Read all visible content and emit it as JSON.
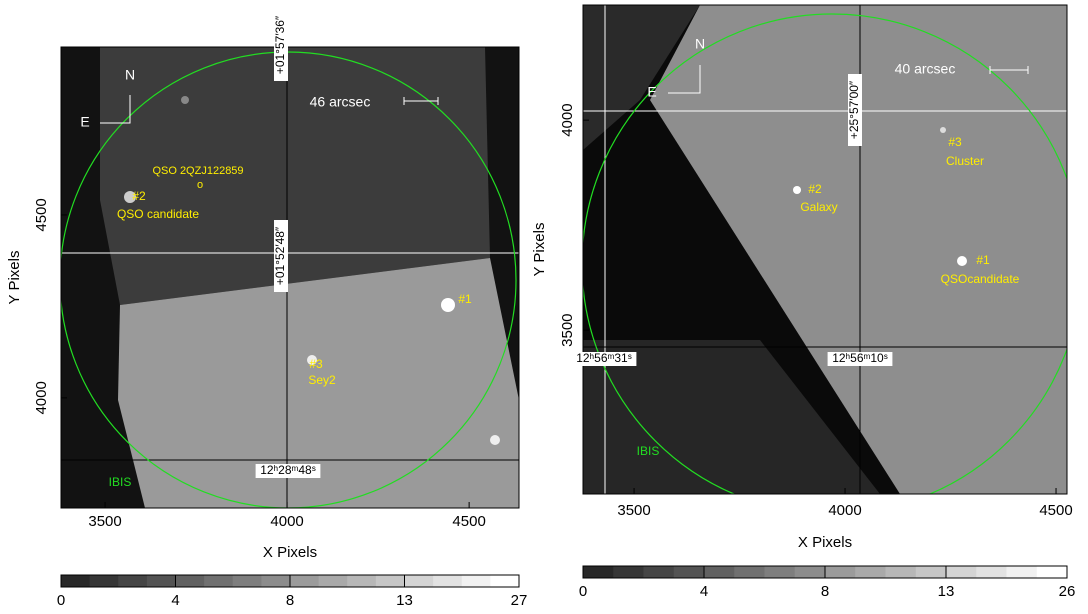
{
  "chart_data": [
    {
      "type": "image",
      "xlabel": "X Pixels",
      "ylabel": "Y Pixels",
      "xlim": [
        3379,
        4637
      ],
      "ylim": [
        3699,
        4959
      ],
      "xticks": [
        3500,
        4000,
        4500
      ],
      "yticks": [
        4000,
        4500
      ],
      "colorbar_ticks": [
        0,
        4,
        8,
        13,
        27
      ],
      "annotations": [
        {
          "text": "N",
          "color": "#ffffff"
        },
        {
          "text": "E",
          "color": "#ffffff"
        },
        {
          "text": "46 arcsec",
          "color": "#ffffff"
        },
        {
          "text": "QSO 2QZJ122859",
          "color": "#ffee00"
        },
        {
          "text": "o",
          "color": "#ffee00"
        },
        {
          "text": "#2",
          "color": "#ffee00"
        },
        {
          "text": "QSO candidate",
          "color": "#ffee00"
        },
        {
          "text": "#1",
          "color": "#ffee00"
        },
        {
          "text": "#3",
          "color": "#ffee00"
        },
        {
          "text": "Sey2",
          "color": "#ffee00"
        },
        {
          "text": "IBIS",
          "color": "#22dd22"
        },
        {
          "text": "12ʰ28ᵐ48ˢ",
          "color": "#000000"
        },
        {
          "text": "+01°57′36″",
          "color": "#000000"
        },
        {
          "text": "+01°52′48″",
          "color": "#000000"
        }
      ]
    },
    {
      "type": "image",
      "xlabel": "X Pixels",
      "ylabel": "Y Pixels",
      "xlim": [
        3379,
        4526
      ],
      "ylim": [
        3110,
        4274
      ],
      "xticks": [
        3500,
        4000,
        4500
      ],
      "yticks": [
        3500,
        4000
      ],
      "colorbar_ticks": [
        0,
        4,
        8,
        13,
        26
      ],
      "annotations": [
        {
          "text": "N",
          "color": "#ffffff"
        },
        {
          "text": "E",
          "color": "#ffffff"
        },
        {
          "text": "40 arcsec",
          "color": "#ffffff"
        },
        {
          "text": "#3",
          "color": "#ffee00"
        },
        {
          "text": "Cluster",
          "color": "#ffee00"
        },
        {
          "text": "#2",
          "color": "#ffee00"
        },
        {
          "text": "Galaxy",
          "color": "#ffee00"
        },
        {
          "text": "#1",
          "color": "#ffee00"
        },
        {
          "text": "QSOcandidate",
          "color": "#ffee00"
        },
        {
          "text": "IBIS",
          "color": "#22dd22"
        },
        {
          "text": "12ʰ56ᵐ31ˢ",
          "color": "#000000"
        },
        {
          "text": "12ʰ56ᵐ10ˢ",
          "color": "#000000"
        },
        {
          "text": "+25°57′00″",
          "color": "#000000"
        }
      ]
    }
  ]
}
